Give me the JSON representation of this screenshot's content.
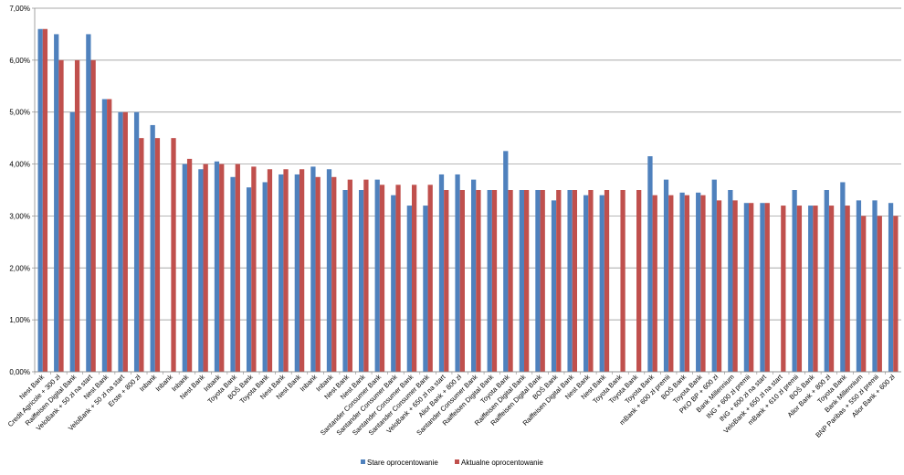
{
  "chart_data": {
    "type": "bar",
    "title": "",
    "xlabel": "",
    "ylabel": "",
    "ylim": [
      0,
      7
    ],
    "y_ticks": [
      "0,00%",
      "1,00%",
      "2,00%",
      "3,00%",
      "4,00%",
      "5,00%",
      "6,00%",
      "7,00%"
    ],
    "grid": "horizontal",
    "legend_position": "bottom",
    "categories": [
      "Nest Bank",
      "Credit Agricole + 300 zł",
      "Raiffeisen Digital Bank",
      "VeloBank + 50 zł na start",
      "Nest Bank",
      "VeloBank + 50 zł na start",
      "Erste + 800 zł",
      "Inbank",
      "Inbank",
      "Inbank",
      "Nest Bank",
      "Inbank",
      "Toyota Bank",
      "BOŚ Bank",
      "Toyota Bank",
      "Nest Bank",
      "Nest Bank",
      "Inbank",
      "Inbank",
      "Nest Bank",
      "Nest Bank",
      "Santander Consumer Bank",
      "Santander Consumer Bank",
      "Santander Consumer Bank",
      "Santander Consumer Bank",
      "VeloBank + 650 zł na start",
      "Alior Bank + 800 zł",
      "Santander Consumer Bank",
      "Raiffeisen Digital Bank",
      "Toyota Bank",
      "Raiffeisen Digital Bank",
      "Raiffeisen Digital Bank",
      "BOŚ Bank",
      "Raiffeisen Digital Bank",
      "Nest Bank",
      "Nest Bank",
      "Toyota Bank",
      "Toyota Bank",
      "Toyota Bank",
      "mBank + 600 zł premii",
      "BOŚ Bank",
      "Toyota Bank",
      "PKO BP + 600 zł",
      "Bank Millennium",
      "ING + 600 zł premii",
      "ING + 600 zł na start",
      "VeloBank + 650 zł na start",
      "mBank + 610 zł premii",
      "BOŚ Bank",
      "Alior Bank + 800 zł",
      "Toyota Bank",
      "Bank Millennium",
      "BNP Paribas + 550 zł premii",
      "Alior Bank + 600 zł"
    ],
    "series": [
      {
        "name": "Stare oprocentowanie",
        "color": "#4F81BD",
        "values": [
          6.6,
          6.5,
          5.0,
          6.5,
          5.25,
          5.0,
          5.0,
          4.75,
          0,
          4.0,
          3.9,
          4.05,
          3.75,
          3.55,
          3.65,
          3.8,
          3.8,
          3.95,
          3.9,
          3.5,
          3.5,
          3.7,
          3.4,
          3.2,
          3.2,
          3.8,
          3.8,
          3.7,
          3.5,
          4.25,
          3.5,
          3.5,
          3.3,
          3.5,
          3.4,
          3.4,
          0,
          0,
          4.15,
          3.7,
          3.45,
          3.45,
          3.7,
          3.5,
          3.25,
          3.25,
          0,
          3.5,
          3.2,
          3.5,
          3.65,
          3.3,
          3.3,
          3.25
        ]
      },
      {
        "name": "Aktualne oprocentowanie",
        "color": "#C0504D",
        "values": [
          6.6,
          6.0,
          6.0,
          6.0,
          5.25,
          5.0,
          4.5,
          4.5,
          4.5,
          4.1,
          4.0,
          4.0,
          4.0,
          3.95,
          3.9,
          3.9,
          3.9,
          3.75,
          3.75,
          3.7,
          3.7,
          3.6,
          3.6,
          3.6,
          3.6,
          3.5,
          3.5,
          3.5,
          3.5,
          3.5,
          3.5,
          3.5,
          3.5,
          3.5,
          3.5,
          3.5,
          3.5,
          3.5,
          3.4,
          3.4,
          3.4,
          3.4,
          3.3,
          3.3,
          3.25,
          3.25,
          3.2,
          3.2,
          3.2,
          3.2,
          3.2,
          3.0,
          3.0,
          3.0
        ]
      }
    ]
  }
}
